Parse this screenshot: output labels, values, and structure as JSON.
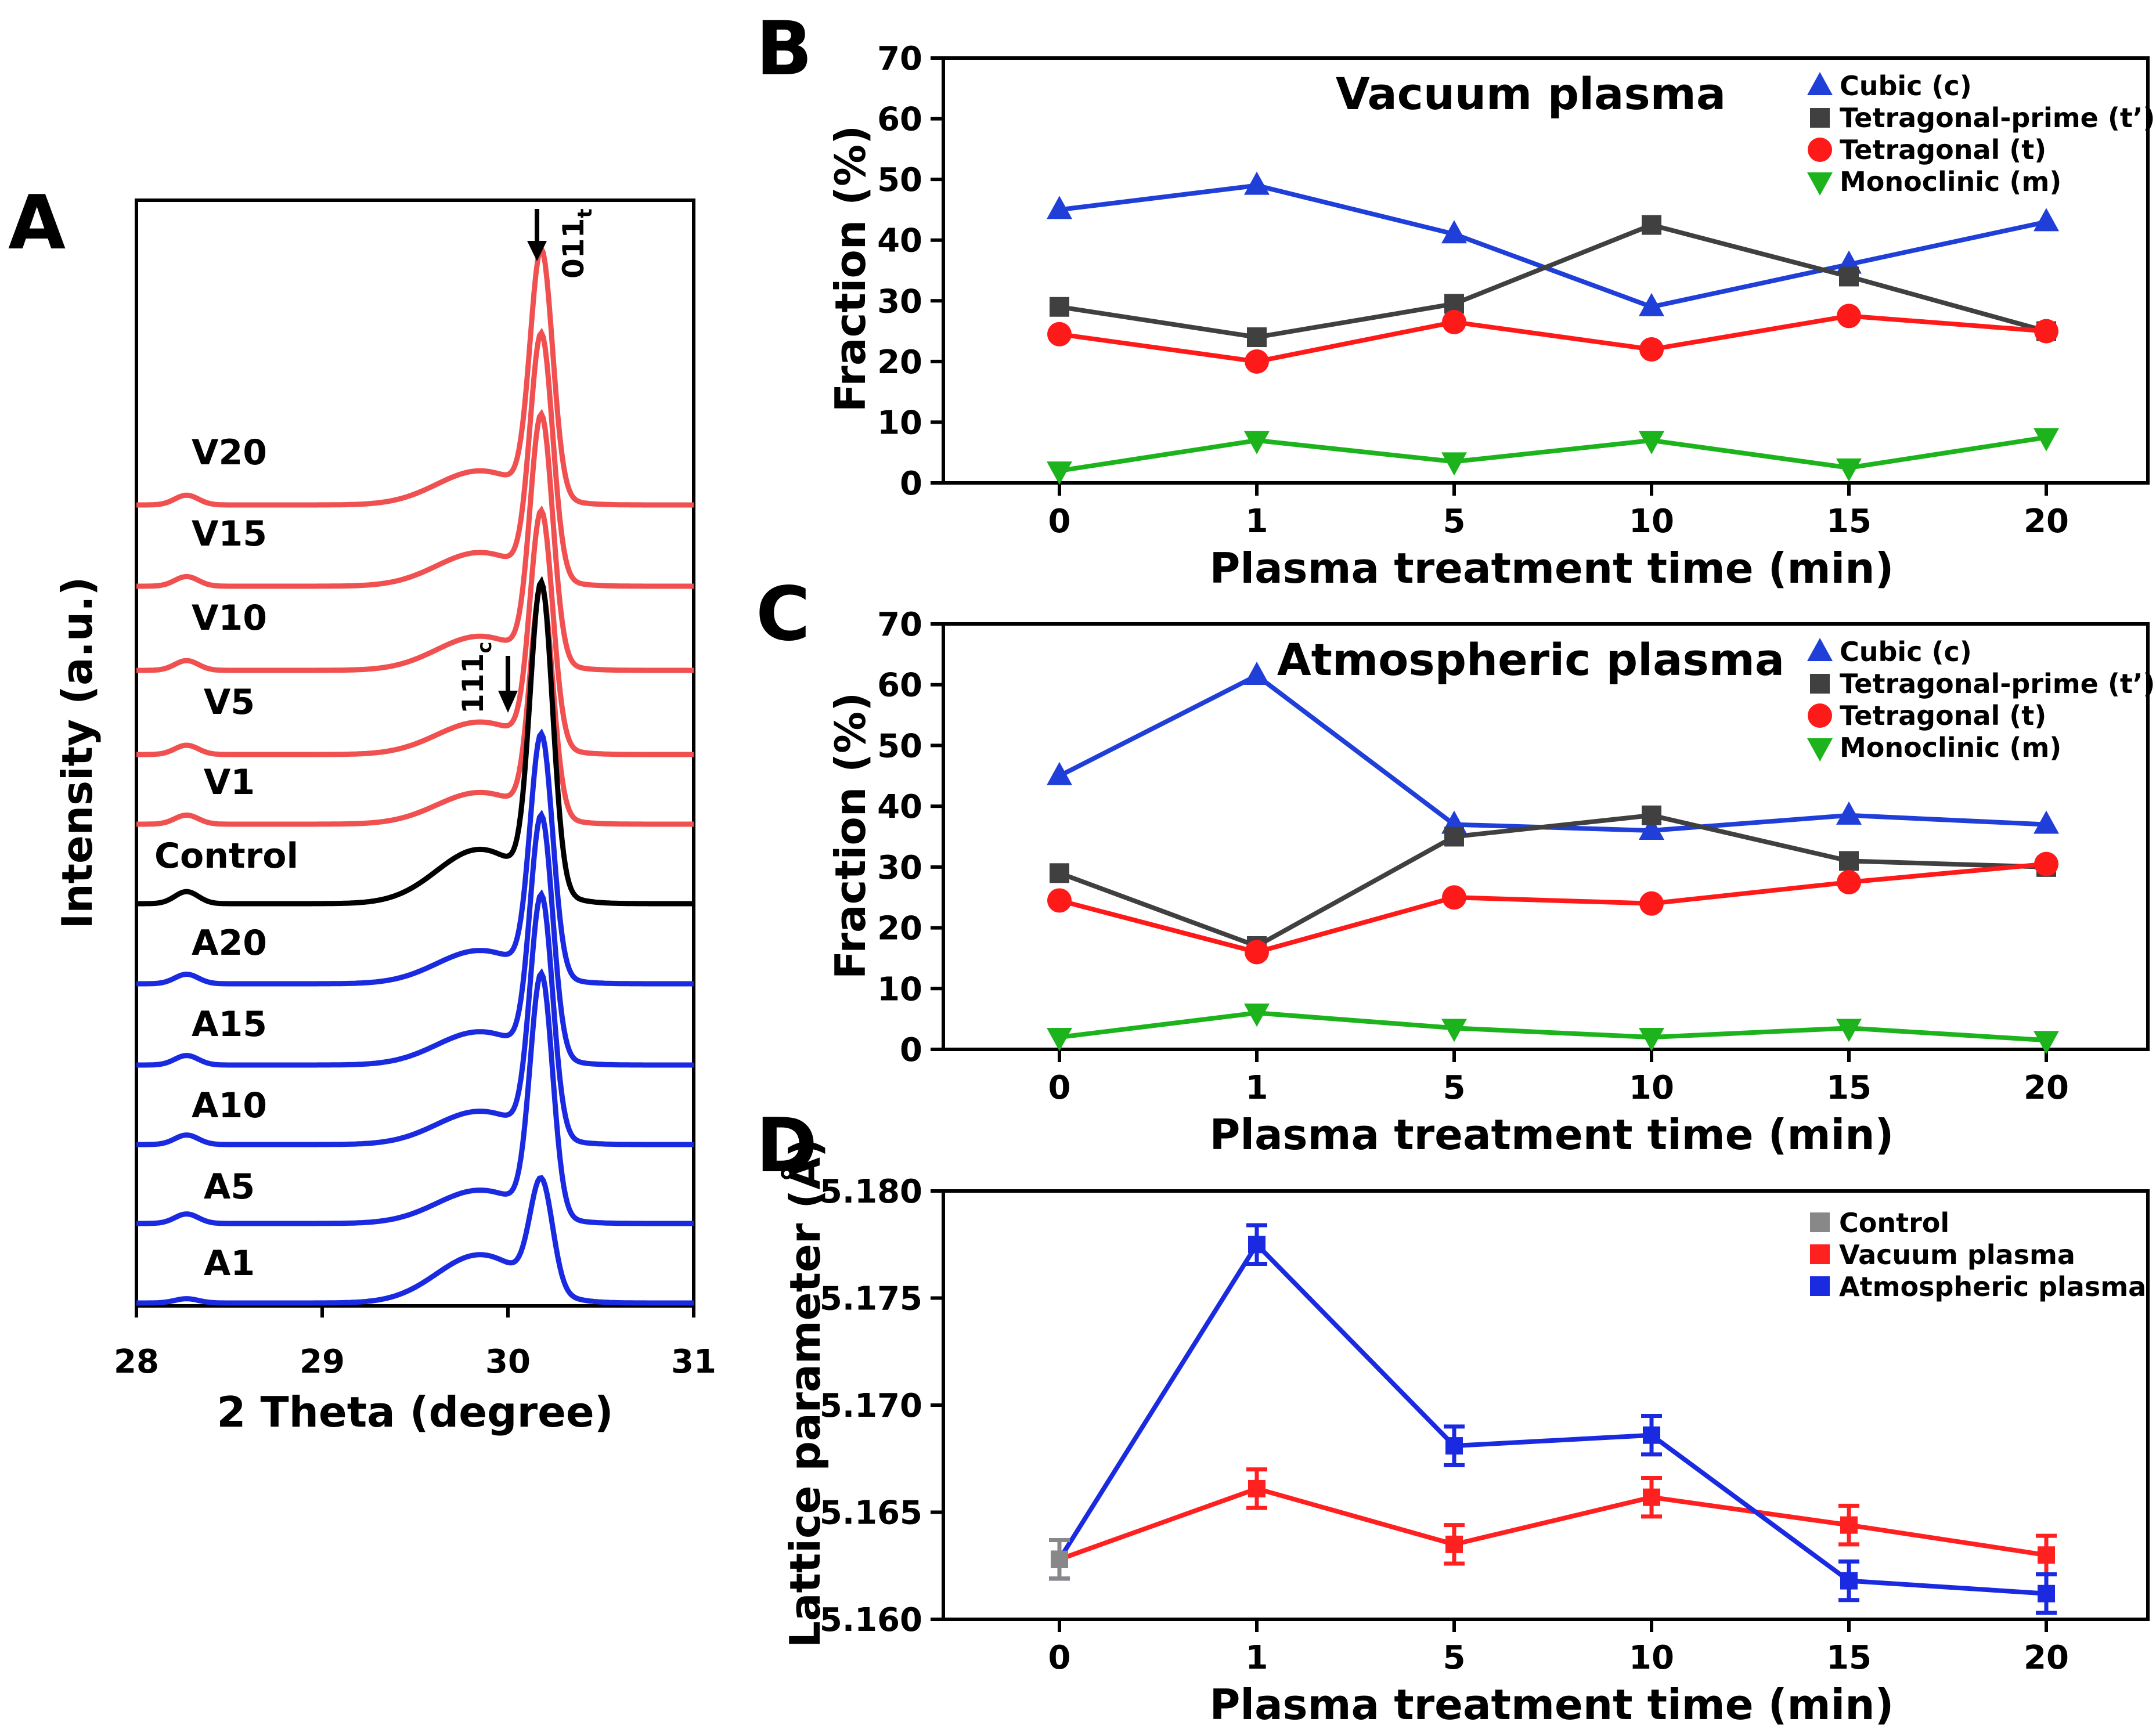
{
  "colors": {
    "cubic": "#1f3fd8",
    "tprime": "#404040",
    "tetragonal": "#ff1a1a",
    "monoclinic": "#1db31d",
    "vacuum": "#ff2020",
    "atmospheric": "#1a2ae0",
    "control": "#888888",
    "trace_vacuum": "#f05050",
    "trace_control": "#000000"
  },
  "panels": {
    "A": "A",
    "B": "B",
    "C": "C",
    "D": "D"
  },
  "chart_data": [
    {
      "id": "A",
      "type": "line",
      "xlabel": "2 Theta (degree)",
      "ylabel": "Intensity (a.u.)",
      "xlim": [
        28,
        31
      ],
      "xticks": [
        "28",
        "29",
        "30",
        "31"
      ],
      "traces": [
        "V20",
        "V15",
        "V10",
        "V5",
        "V1",
        "Control",
        "A20",
        "A15",
        "A10",
        "A5",
        "A1"
      ],
      "annotations": {
        "peak_011": "011",
        "peak_011_sub": "t",
        "peak_111": "111",
        "peak_111_sub": "c"
      }
    },
    {
      "id": "B",
      "type": "line",
      "title": "Vacuum plasma",
      "xlabel": "Plasma treatment time (min)",
      "ylabel": "Fraction (%)",
      "categories": [
        "0",
        "1",
        "5",
        "10",
        "15",
        "20"
      ],
      "ylim": [
        0,
        70
      ],
      "yticks": [
        "0",
        "10",
        "20",
        "30",
        "40",
        "50",
        "60",
        "70"
      ],
      "series": [
        {
          "name": "Cubic (c)",
          "key": "cubic",
          "values": [
            45,
            49,
            41,
            29,
            36,
            43
          ]
        },
        {
          "name": "Tetragonal-prime (t’)",
          "key": "tprime",
          "values": [
            29,
            24,
            29.5,
            42.5,
            34,
            25
          ]
        },
        {
          "name": "Tetragonal (t)",
          "key": "tetragonal",
          "values": [
            24.5,
            20,
            26.5,
            22,
            27.5,
            25
          ]
        },
        {
          "name": "Monoclinic (m)",
          "key": "monoclinic",
          "values": [
            2,
            7,
            3.5,
            7,
            2.5,
            7.5
          ]
        }
      ]
    },
    {
      "id": "C",
      "type": "line",
      "title": "Atmospheric plasma",
      "xlabel": "Plasma treatment time (min)",
      "ylabel": "Fraction (%)",
      "categories": [
        "0",
        "1",
        "5",
        "10",
        "15",
        "20"
      ],
      "ylim": [
        0,
        70
      ],
      "yticks": [
        "0",
        "10",
        "20",
        "30",
        "40",
        "50",
        "60",
        "70"
      ],
      "series": [
        {
          "name": "Cubic (c)",
          "key": "cubic",
          "values": [
            45,
            61.5,
            37,
            36,
            38.5,
            37
          ]
        },
        {
          "name": "Tetragonal-prime (t’)",
          "key": "tprime",
          "values": [
            29,
            17,
            35,
            38.5,
            31,
            30
          ]
        },
        {
          "name": "Tetragonal (t)",
          "key": "tetragonal",
          "values": [
            24.5,
            16,
            25,
            24,
            27.5,
            30.5
          ]
        },
        {
          "name": "Monoclinic (m)",
          "key": "monoclinic",
          "values": [
            2,
            6,
            3.5,
            2,
            3.5,
            1.5
          ]
        }
      ]
    },
    {
      "id": "D",
      "type": "line",
      "xlabel": "Plasma treatment time (min)",
      "ylabel": "Lattice parameter (Å)",
      "categories": [
        "0",
        "1",
        "5",
        "10",
        "15",
        "20"
      ],
      "ylim": [
        5.16,
        5.18
      ],
      "yticks": [
        "5.160",
        "5.165",
        "5.170",
        "5.175",
        "5.180"
      ],
      "legend": [
        "Control",
        "Vacuum plasma",
        "Atmospheric plasma"
      ],
      "series": [
        {
          "name": "Control",
          "key": "control",
          "values": [
            5.1628,
            null,
            null,
            null,
            null,
            null
          ]
        },
        {
          "name": "Vacuum plasma",
          "key": "vacuum",
          "values": [
            5.1628,
            5.1661,
            5.1635,
            5.1657,
            5.1644,
            5.163
          ]
        },
        {
          "name": "Atmospheric plasma",
          "key": "atmospheric",
          "values": [
            5.1628,
            5.1775,
            5.1681,
            5.1686,
            5.1618,
            5.1612
          ]
        }
      ]
    }
  ]
}
